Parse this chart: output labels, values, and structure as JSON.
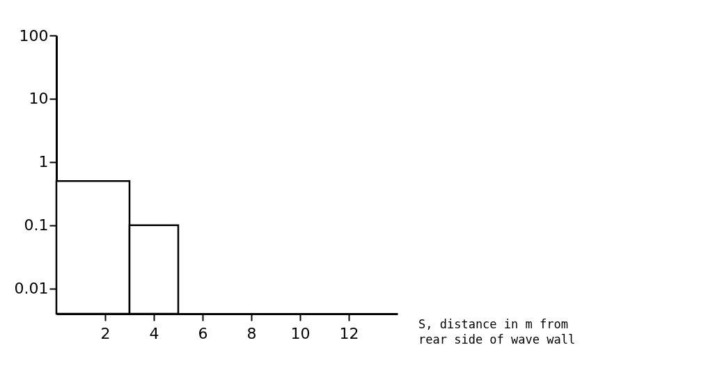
{
  "chart_data": {
    "type": "histogram",
    "xlabel": "S, distance in m from rear side of wave wall",
    "bins": [
      0,
      3,
      5
    ],
    "values": [
      0.5,
      0.1
    ],
    "color": "#ffffff",
    "log": "y",
    "xlim": [
      0,
      14
    ],
    "xticks": [
      2,
      4,
      6,
      8,
      10,
      12
    ],
    "ylim": [
      0.004,
      100
    ],
    "yticks": [
      0.01,
      0.1,
      1,
      10,
      100
    ],
    "grid": false
  }
}
